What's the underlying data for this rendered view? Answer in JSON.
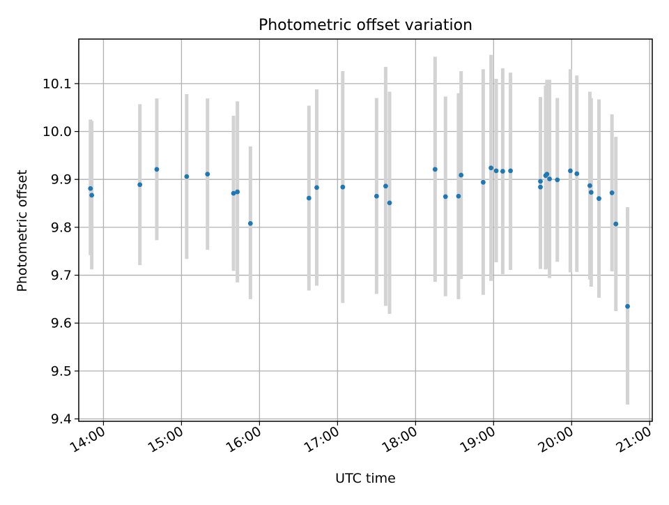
{
  "chart_data": {
    "type": "scatter",
    "title": "Photometric offset variation",
    "xlabel": "UTC time",
    "ylabel": "Photometric offset",
    "x_ticks": [
      "14:00",
      "15:00",
      "16:00",
      "17:00",
      "18:00",
      "19:00",
      "20:00",
      "21:00"
    ],
    "y_ticks": [
      "9.4",
      "9.5",
      "9.6",
      "9.7",
      "9.8",
      "9.9",
      "10.0",
      "10.1"
    ],
    "xlim": [
      "13:41",
      "21:02"
    ],
    "ylim": [
      9.395,
      10.193
    ],
    "grid": true,
    "colors": {
      "marker": "#1f77b4",
      "errorbar": "#d3d3d3",
      "grid": "#b0b0b0"
    },
    "points": [
      {
        "x": "13:50",
        "y": 9.881,
        "lo": 9.742,
        "hi": 10.025
      },
      {
        "x": "13:51",
        "y": 9.867,
        "lo": 9.712,
        "hi": 10.022
      },
      {
        "x": "14:28",
        "y": 9.889,
        "lo": 9.721,
        "hi": 10.057
      },
      {
        "x": "14:41",
        "y": 9.921,
        "lo": 9.773,
        "hi": 10.069
      },
      {
        "x": "15:04",
        "y": 9.906,
        "lo": 9.734,
        "hi": 10.078
      },
      {
        "x": "15:20",
        "y": 9.911,
        "lo": 9.753,
        "hi": 10.069
      },
      {
        "x": "15:40",
        "y": 9.871,
        "lo": 9.709,
        "hi": 10.033
      },
      {
        "x": "15:43",
        "y": 9.874,
        "lo": 9.685,
        "hi": 10.063
      },
      {
        "x": "15:53",
        "y": 9.808,
        "lo": 9.65,
        "hi": 9.969
      },
      {
        "x": "16:38",
        "y": 9.861,
        "lo": 9.668,
        "hi": 10.054
      },
      {
        "x": "16:44",
        "y": 9.883,
        "lo": 9.678,
        "hi": 10.088
      },
      {
        "x": "17:04",
        "y": 9.884,
        "lo": 9.642,
        "hi": 10.126
      },
      {
        "x": "17:30",
        "y": 9.865,
        "lo": 9.661,
        "hi": 10.07
      },
      {
        "x": "17:37",
        "y": 9.886,
        "lo": 9.636,
        "hi": 10.135
      },
      {
        "x": "17:40",
        "y": 9.851,
        "lo": 9.619,
        "hi": 10.083
      },
      {
        "x": "18:15",
        "y": 9.921,
        "lo": 9.686,
        "hi": 10.156
      },
      {
        "x": "18:23",
        "y": 9.864,
        "lo": 9.656,
        "hi": 10.073
      },
      {
        "x": "18:33",
        "y": 9.865,
        "lo": 9.65,
        "hi": 10.08
      },
      {
        "x": "18:35",
        "y": 9.909,
        "lo": 9.692,
        "hi": 10.126
      },
      {
        "x": "18:52",
        "y": 9.894,
        "lo": 9.659,
        "hi": 10.13
      },
      {
        "x": "18:58",
        "y": 9.924,
        "lo": 9.688,
        "hi": 10.16
      },
      {
        "x": "19:02",
        "y": 9.918,
        "lo": 9.727,
        "hi": 10.11
      },
      {
        "x": "19:07",
        "y": 9.917,
        "lo": 9.702,
        "hi": 10.132
      },
      {
        "x": "19:13",
        "y": 9.918,
        "lo": 9.711,
        "hi": 10.123
      },
      {
        "x": "19:36",
        "y": 9.896,
        "lo": 9.713,
        "hi": 10.072
      },
      {
        "x": "19:36",
        "y": 9.884,
        "lo": 9.717,
        "hi": 10.052
      },
      {
        "x": "19:40",
        "y": 9.908,
        "lo": 9.712,
        "hi": 10.096
      },
      {
        "x": "19:41",
        "y": 9.911,
        "lo": 9.714,
        "hi": 10.108
      },
      {
        "x": "19:43",
        "y": 9.901,
        "lo": 9.694,
        "hi": 10.108
      },
      {
        "x": "19:49",
        "y": 9.899,
        "lo": 9.728,
        "hi": 10.07
      },
      {
        "x": "19:59",
        "y": 9.918,
        "lo": 9.706,
        "hi": 10.13
      },
      {
        "x": "20:04",
        "y": 9.912,
        "lo": 9.707,
        "hi": 10.117
      },
      {
        "x": "20:14",
        "y": 9.887,
        "lo": 9.691,
        "hi": 10.083
      },
      {
        "x": "20:15",
        "y": 9.873,
        "lo": 9.676,
        "hi": 10.07
      },
      {
        "x": "20:21",
        "y": 9.86,
        "lo": 9.653,
        "hi": 10.067
      },
      {
        "x": "20:31",
        "y": 9.872,
        "lo": 9.708,
        "hi": 10.036
      },
      {
        "x": "20:34",
        "y": 9.807,
        "lo": 9.625,
        "hi": 9.989
      },
      {
        "x": "20:43",
        "y": 9.635,
        "lo": 9.43,
        "hi": 9.842
      }
    ]
  }
}
